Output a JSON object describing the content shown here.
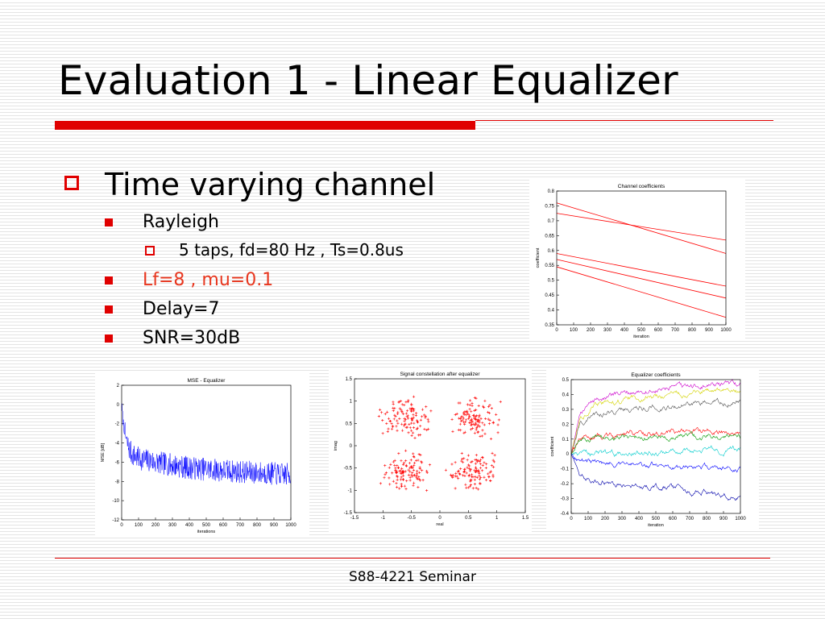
{
  "slide": {
    "title": "Evaluation 1 - Linear Equalizer",
    "footer": "S88-4221 Seminar",
    "accent_color": "#e00000"
  },
  "bullets": {
    "heading": "Time varying channel",
    "items": [
      {
        "text": "Rayleigh",
        "level": 2
      },
      {
        "text": "5 taps, fd=80 Hz , Ts=0.8us",
        "level": 3
      },
      {
        "text": "Lf=8 , mu=0.1",
        "level": 2,
        "color": "#e8361e"
      },
      {
        "text": "Delay=7",
        "level": 2
      },
      {
        "text": "SNR=30dB",
        "level": 2
      }
    ]
  },
  "chart_data": [
    {
      "type": "line",
      "title": "Channel coefficients",
      "xlabel": "iteration",
      "ylabel": "coefficient",
      "xlim": [
        0,
        1000
      ],
      "ylim": [
        0.35,
        0.8
      ],
      "xticks": [
        0,
        100,
        200,
        300,
        400,
        500,
        600,
        700,
        800,
        900,
        1000
      ],
      "yticks": [
        0.35,
        0.4,
        0.45,
        0.5,
        0.55,
        0.6,
        0.65,
        0.7,
        0.75,
        0.8
      ],
      "x": [
        0,
        1000
      ],
      "series": [
        {
          "values": [
            0.76,
            0.59
          ],
          "color": "#ff0000"
        },
        {
          "values": [
            0.725,
            0.635
          ],
          "color": "#ff0000"
        },
        {
          "values": [
            0.59,
            0.48
          ],
          "color": "#ff0000"
        },
        {
          "values": [
            0.57,
            0.44
          ],
          "color": "#ff0000"
        },
        {
          "values": [
            0.545,
            0.375
          ],
          "color": "#ff0000"
        }
      ]
    },
    {
      "type": "line",
      "title": "MSE - Equalizer",
      "xlabel": "iterations",
      "ylabel": "MSE [dB]",
      "xlim": [
        0,
        1000
      ],
      "ylim": [
        -12,
        2
      ],
      "xticks": [
        0,
        100,
        200,
        300,
        400,
        500,
        600,
        700,
        800,
        900,
        1000
      ],
      "yticks": [
        -12,
        -10,
        -8,
        -6,
        -4,
        -2,
        0,
        2
      ],
      "color": "#0000ff",
      "trend": {
        "x": [
          0,
          10,
          30,
          60,
          100,
          200,
          400,
          700,
          1000
        ],
        "y": [
          0,
          -2,
          -4,
          -5.2,
          -5.6,
          -6.0,
          -6.6,
          -7.0,
          -7.3
        ]
      },
      "noise_db": 1.2
    },
    {
      "type": "scatter",
      "title": "Signal constellation after equalizer",
      "xlabel": "real",
      "ylabel": "imag",
      "xlim": [
        -1.5,
        1.5
      ],
      "ylim": [
        -1.5,
        1.5
      ],
      "xticks": [
        -1.5,
        -1,
        -0.5,
        0,
        0.5,
        1,
        1.5
      ],
      "yticks": [
        -1.5,
        -1,
        -0.5,
        0,
        0.5,
        1,
        1.5
      ],
      "marker": "+",
      "color": "#ff0000",
      "cluster_centers": [
        [
          -0.6,
          0.6
        ],
        [
          0.6,
          0.6
        ],
        [
          -0.6,
          -0.6
        ],
        [
          0.6,
          -0.6
        ]
      ],
      "cluster_spread": 0.3
    },
    {
      "type": "line",
      "title": "Equalizer coefficients",
      "xlabel": "iteration",
      "ylabel": "coefficient",
      "xlim": [
        0,
        1000
      ],
      "ylim": [
        -0.4,
        0.5
      ],
      "xticks": [
        0,
        100,
        200,
        300,
        400,
        500,
        600,
        700,
        800,
        900,
        1000
      ],
      "yticks": [
        -0.4,
        -0.3,
        -0.2,
        -0.1,
        0,
        0.1,
        0.2,
        0.3,
        0.4,
        0.5
      ],
      "series": [
        {
          "color": "#cc00cc",
          "trend": {
            "x": [
              0,
              50,
              150,
              400,
              700,
              1000
            ],
            "y": [
              0,
              0.3,
              0.37,
              0.42,
              0.45,
              0.47
            ]
          }
        },
        {
          "color": "#d4d400",
          "trend": {
            "x": [
              0,
              50,
              150,
              400,
              700,
              1000
            ],
            "y": [
              0,
              0.25,
              0.33,
              0.38,
              0.41,
              0.43
            ]
          }
        },
        {
          "color": "#555555",
          "trend": {
            "x": [
              0,
              50,
              150,
              400,
              700,
              1000
            ],
            "y": [
              0,
              0.2,
              0.27,
              0.31,
              0.33,
              0.35
            ]
          }
        },
        {
          "color": "#ff0000",
          "trend": {
            "x": [
              0,
              50,
              150,
              400,
              700,
              1000
            ],
            "y": [
              0,
              0.09,
              0.12,
              0.14,
              0.15,
              0.15
            ]
          }
        },
        {
          "color": "#009900",
          "trend": {
            "x": [
              0,
              50,
              150,
              400,
              700,
              1000
            ],
            "y": [
              0,
              0.08,
              0.11,
              0.12,
              0.12,
              0.11
            ]
          }
        },
        {
          "color": "#00cccc",
          "trend": {
            "x": [
              0,
              50,
              150,
              400,
              700,
              1000
            ],
            "y": [
              0,
              -0.01,
              0.0,
              0.01,
              0.02,
              0.03
            ]
          }
        },
        {
          "color": "#0000ff",
          "trend": {
            "x": [
              0,
              50,
              150,
              400,
              700,
              1000
            ],
            "y": [
              0,
              -0.04,
              -0.06,
              -0.07,
              -0.09,
              -0.1
            ]
          }
        },
        {
          "color": "#0000aa",
          "trend": {
            "x": [
              0,
              50,
              150,
              400,
              700,
              1000
            ],
            "y": [
              0,
              -0.15,
              -0.18,
              -0.21,
              -0.25,
              -0.29
            ]
          }
        }
      ],
      "noise": 0.02
    }
  ]
}
